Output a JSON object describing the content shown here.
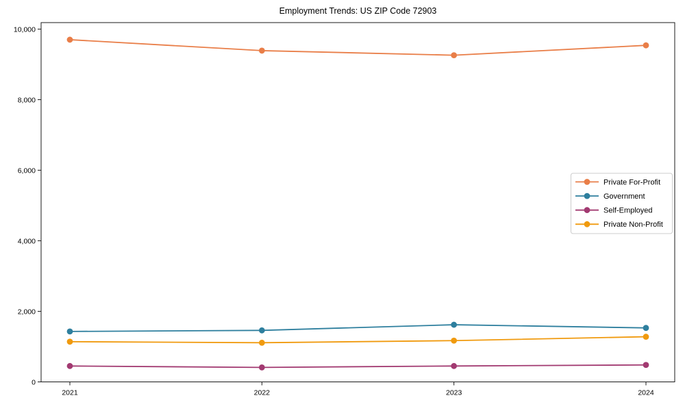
{
  "page": {
    "background_color": "#ffffff",
    "text_color": "#000000",
    "spine_color": "#1a1a1a"
  },
  "chart_data": {
    "type": "line",
    "title": "Employment Trends: US ZIP Code 72903",
    "xlabel": "",
    "ylabel": "",
    "categories": [
      "2021",
      "2022",
      "2023",
      "2024"
    ],
    "x": [
      2021,
      2022,
      2023,
      2024
    ],
    "series": [
      {
        "name": "Private For-Profit",
        "color": "#E97E48",
        "values": [
          9700,
          9390,
          9260,
          9540
        ]
      },
      {
        "name": "Government",
        "color": "#2E7F9E",
        "values": [
          1430,
          1460,
          1620,
          1530
        ]
      },
      {
        "name": "Self-Employed",
        "color": "#A23A71",
        "values": [
          450,
          410,
          450,
          480
        ]
      },
      {
        "name": "Private Non-Profit",
        "color": "#F09A0E",
        "values": [
          1140,
          1110,
          1170,
          1280
        ]
      }
    ],
    "ylim": [
      0,
      10000
    ],
    "yticks": [
      0,
      2000,
      4000,
      6000,
      8000,
      10000
    ],
    "ytick_labels": [
      "0",
      "2,000",
      "4,000",
      "6,000",
      "8,000",
      "10,000"
    ],
    "xtick_labels": [
      "2021",
      "2022",
      "2023",
      "2024"
    ],
    "grid": false,
    "legend_position": "center right",
    "legend_entries": [
      "Private For-Profit",
      "Government",
      "Self-Employed",
      "Private Non-Profit"
    ],
    "marker": "circle"
  }
}
